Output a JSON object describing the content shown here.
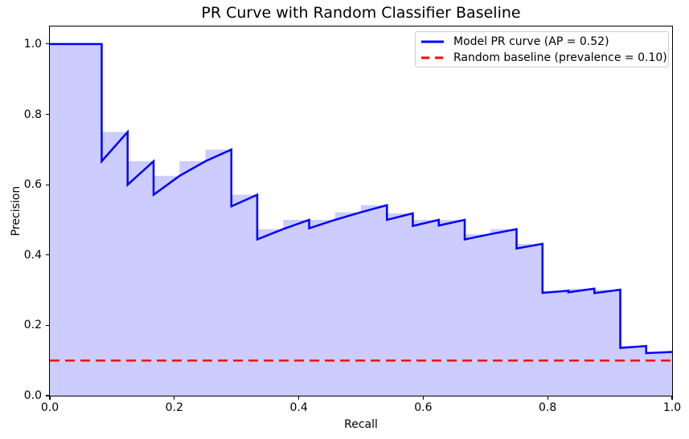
{
  "figure": {
    "title": "PR Curve with Random Classifier Baseline",
    "xlabel": "Recall",
    "ylabel": "Precision",
    "background": "#ffffff",
    "x_tick_labels": [
      "0.0",
      "0.2",
      "0.4",
      "0.6",
      "0.8",
      "1.0"
    ],
    "y_tick_labels": [
      "0.0",
      "0.2",
      "0.4",
      "0.6",
      "0.8",
      "1.0"
    ]
  },
  "legend": {
    "position": "upper right",
    "items": [
      {
        "label": "Model PR curve (AP = 0.52)",
        "color": "#0000ff",
        "line_style": "solid"
      },
      {
        "label": "Random baseline (prevalence = 0.10)",
        "color": "#ff0000",
        "line_style": "dashed"
      }
    ]
  },
  "colors": {
    "pr_line": "#0000ff",
    "baseline": "#ff0000",
    "area_fill": "#0000ff",
    "area_alpha": 0.2,
    "spine": "#000000",
    "legend_border": "#cccccc"
  },
  "chart_data": {
    "type": "line",
    "title": "PR Curve with Random Classifier Baseline",
    "xlabel": "Recall",
    "ylabel": "Precision",
    "xlim": [
      0.0,
      1.0
    ],
    "ylim": [
      0.0,
      1.05
    ],
    "x_ticks": [
      0.0,
      0.2,
      0.4,
      0.6,
      0.8,
      1.0
    ],
    "y_ticks": [
      0.0,
      0.2,
      0.4,
      0.6,
      0.8,
      1.0
    ],
    "grid": false,
    "legend_position": "upper right",
    "ap": 0.52,
    "prevalence": 0.1,
    "series": [
      {
        "name": "Model PR curve (AP = 0.52)",
        "type": "line",
        "color": "#0000ff",
        "linewidth": 2.5,
        "points": [
          [
            0.0,
            1.0
          ],
          [
            0.0417,
            1.0
          ],
          [
            0.0833,
            1.0
          ],
          [
            0.0833,
            0.6667
          ],
          [
            0.125,
            0.75
          ],
          [
            0.125,
            0.6
          ],
          [
            0.1667,
            0.6667
          ],
          [
            0.1667,
            0.5714
          ],
          [
            0.2083,
            0.625
          ],
          [
            0.25,
            0.6667
          ],
          [
            0.2917,
            0.7
          ],
          [
            0.2917,
            0.5385
          ],
          [
            0.3333,
            0.5714
          ],
          [
            0.3333,
            0.4444
          ],
          [
            0.375,
            0.4737
          ],
          [
            0.4167,
            0.5
          ],
          [
            0.4167,
            0.4762
          ],
          [
            0.4583,
            0.5
          ],
          [
            0.5,
            0.5217
          ],
          [
            0.5417,
            0.5417
          ],
          [
            0.5417,
            0.5
          ],
          [
            0.5833,
            0.5185
          ],
          [
            0.5833,
            0.4828
          ],
          [
            0.625,
            0.5
          ],
          [
            0.625,
            0.4839
          ],
          [
            0.6667,
            0.5
          ],
          [
            0.6667,
            0.4444
          ],
          [
            0.7083,
            0.4595
          ],
          [
            0.75,
            0.4737
          ],
          [
            0.75,
            0.4186
          ],
          [
            0.7917,
            0.4318
          ],
          [
            0.7917,
            0.2923
          ],
          [
            0.8333,
            0.2985
          ],
          [
            0.8333,
            0.2941
          ],
          [
            0.875,
            0.3043
          ],
          [
            0.875,
            0.2917
          ],
          [
            0.9167,
            0.3014
          ],
          [
            0.9167,
            0.1358
          ],
          [
            0.9583,
            0.1411
          ],
          [
            0.9583,
            0.1211
          ],
          [
            1.0,
            0.1244
          ]
        ],
        "area_fill": {
          "color": "#0000ff",
          "alpha": 0.2,
          "step": "pre",
          "steps": [
            [
              0.0,
              0.0417,
              1.0
            ],
            [
              0.0417,
              0.0833,
              1.0
            ],
            [
              0.0833,
              0.125,
              0.75
            ],
            [
              0.125,
              0.1667,
              0.6667
            ],
            [
              0.1667,
              0.2083,
              0.625
            ],
            [
              0.2083,
              0.25,
              0.6667
            ],
            [
              0.25,
              0.2917,
              0.7
            ],
            [
              0.2917,
              0.3333,
              0.5714
            ],
            [
              0.3333,
              0.375,
              0.4737
            ],
            [
              0.375,
              0.4167,
              0.5
            ],
            [
              0.4167,
              0.4583,
              0.5
            ],
            [
              0.4583,
              0.5,
              0.5217
            ],
            [
              0.5,
              0.5417,
              0.5417
            ],
            [
              0.5417,
              0.5833,
              0.5185
            ],
            [
              0.5833,
              0.625,
              0.5
            ],
            [
              0.625,
              0.6667,
              0.5
            ],
            [
              0.6667,
              0.7083,
              0.4595
            ],
            [
              0.7083,
              0.75,
              0.4737
            ],
            [
              0.75,
              0.7917,
              0.4318
            ],
            [
              0.7917,
              0.8333,
              0.2985
            ],
            [
              0.8333,
              0.875,
              0.3043
            ],
            [
              0.875,
              0.9167,
              0.3014
            ],
            [
              0.9167,
              0.9583,
              0.1411
            ],
            [
              0.9583,
              1.0,
              0.1244
            ]
          ]
        }
      },
      {
        "name": "Random baseline (prevalence = 0.10)",
        "type": "hline",
        "color": "#ff0000",
        "linewidth": 2.5,
        "dash": [
          12,
          7
        ],
        "y": 0.1
      }
    ]
  }
}
